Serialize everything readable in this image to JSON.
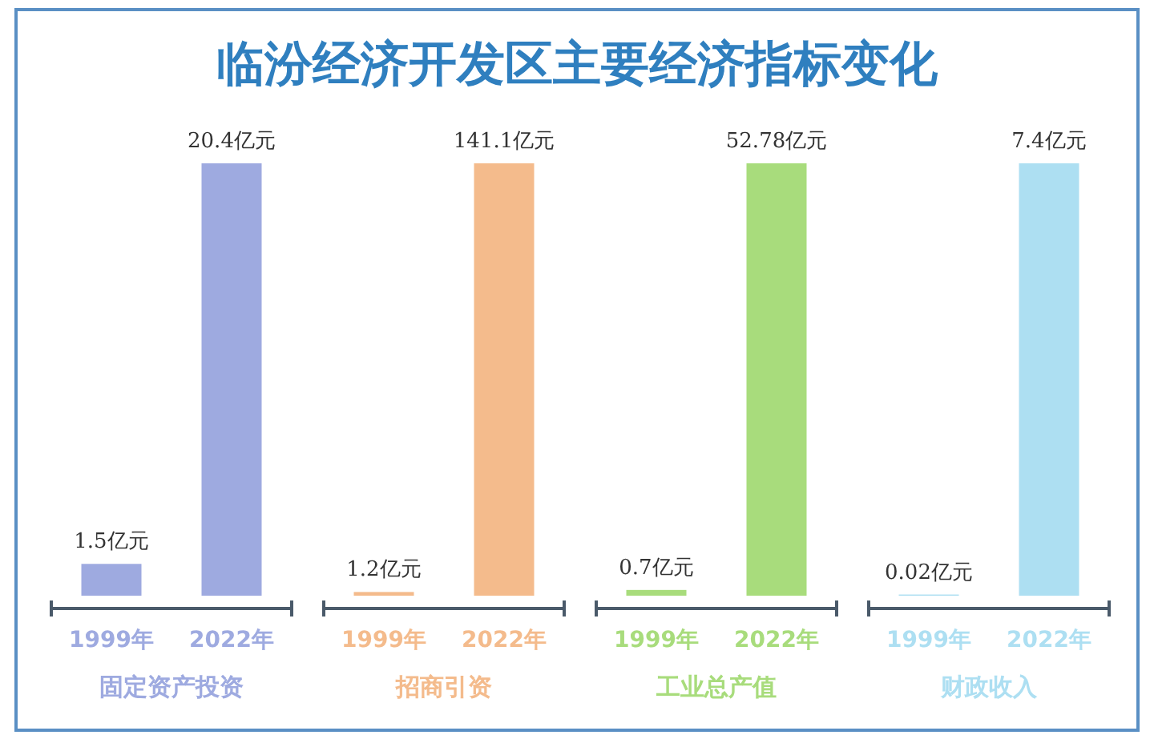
{
  "chart_data": [
    {
      "type": "bar",
      "title": "临汾经济开发区主要经济指标变化",
      "xlabel": "固定资产投资",
      "categories": [
        "1999年",
        "2022年"
      ],
      "values": [
        1.5,
        20.4
      ],
      "colors": [
        "#9eaae0",
        "#9eaae0"
      ],
      "value_labels": [
        "1.5亿元",
        "20.4亿元"
      ]
    },
    {
      "type": "bar",
      "xlabel": "招商引资",
      "categories": [
        "1999年",
        "2022年"
      ],
      "values": [
        1.2,
        141.1
      ],
      "colors": [
        "#f4bb8c",
        "#f4bb8c"
      ],
      "value_labels": [
        "1.2亿元",
        "141.1亿元"
      ]
    },
    {
      "type": "bar",
      "xlabel": "工业总产值",
      "categories": [
        "1999年",
        "2022年"
      ],
      "values": [
        0.7,
        52.78
      ],
      "colors": [
        "#a8dc7c",
        "#a8dc7c"
      ],
      "value_labels": [
        "0.7亿元",
        "52.78亿元"
      ]
    },
    {
      "type": "bar",
      "xlabel": "财政收入",
      "categories": [
        "1999年",
        "2022年"
      ],
      "values": [
        0.02,
        7.4
      ],
      "colors": [
        "#addff2",
        "#addff2"
      ],
      "value_labels": [
        "0.02亿元",
        "7.4亿元"
      ]
    }
  ]
}
